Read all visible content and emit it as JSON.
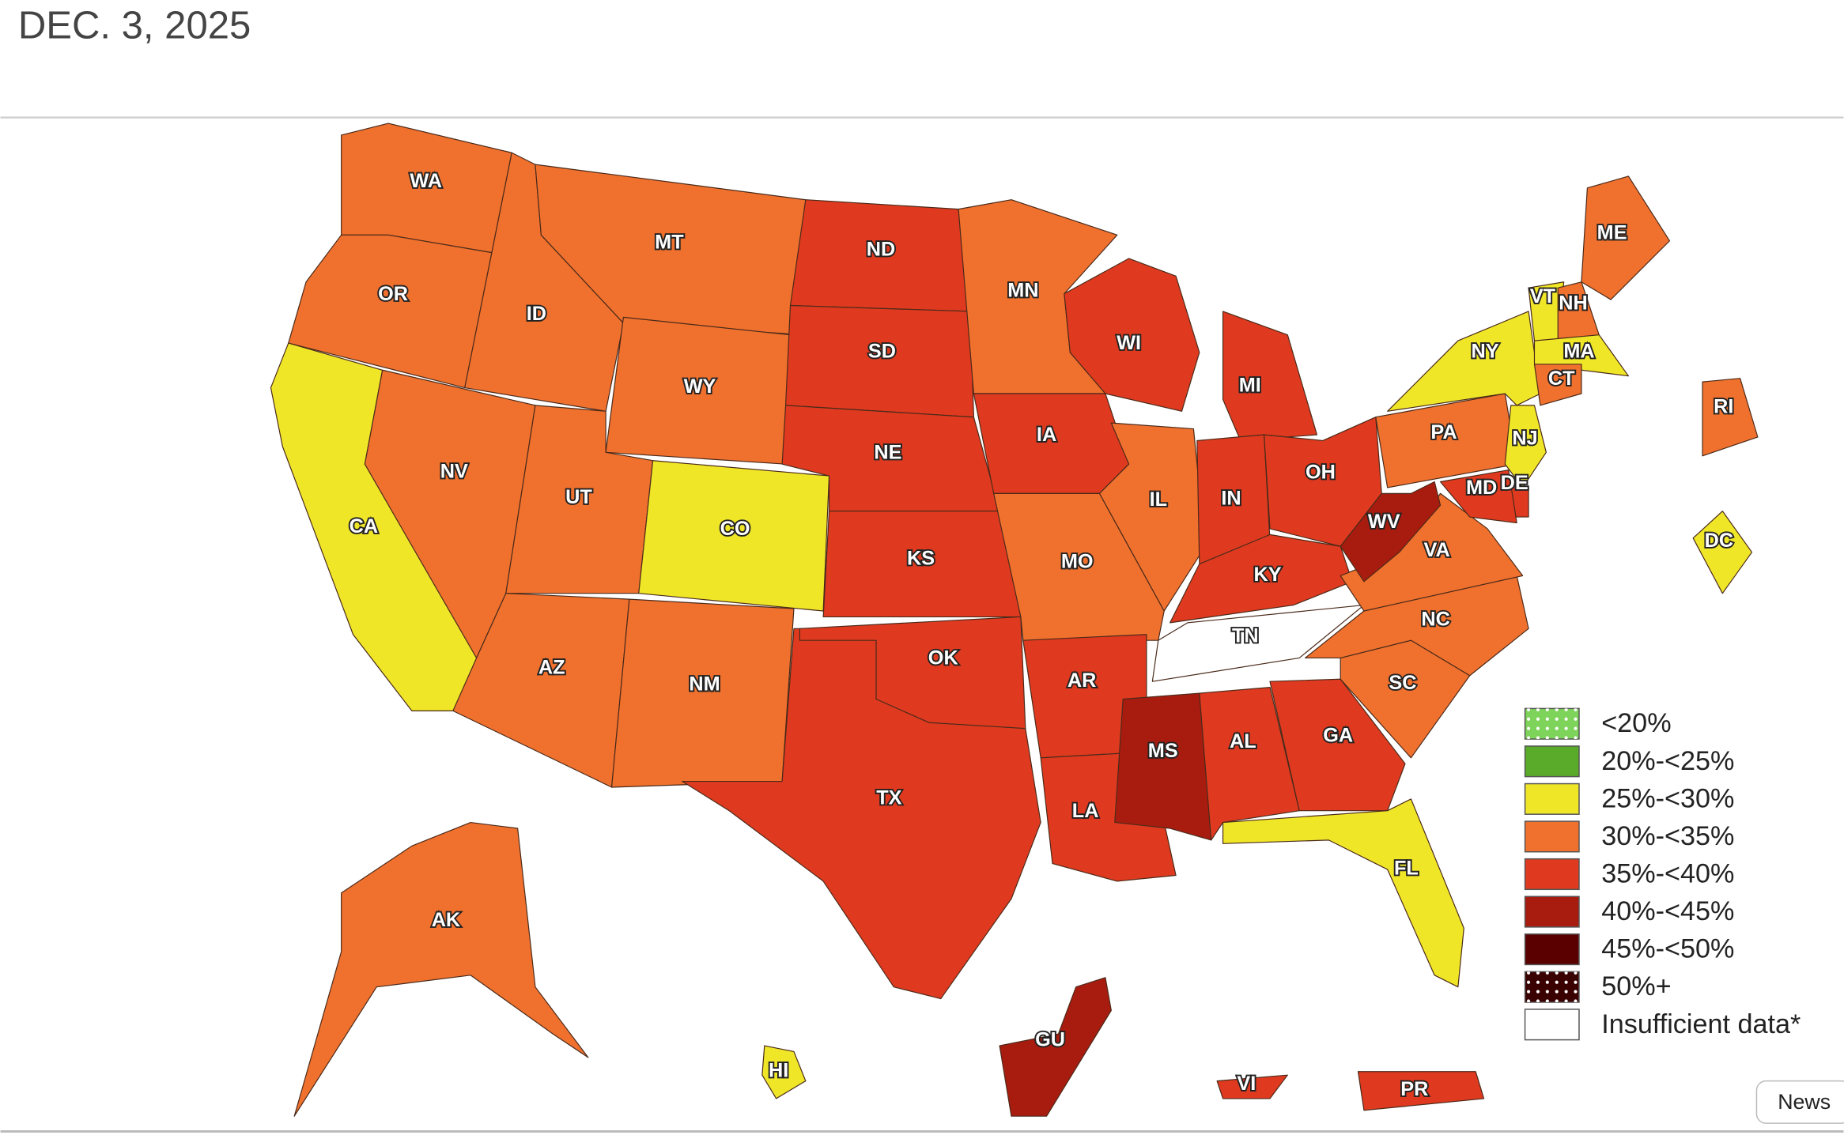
{
  "header": {
    "date": "DEC. 3, 2025"
  },
  "map": {
    "legend": [
      {
        "label": "<20%",
        "color": "#7ed35a",
        "pattern": "dots"
      },
      {
        "label": "20%-<25%",
        "color": "#5aab2a"
      },
      {
        "label": "25%-<30%",
        "color": "#f0e628"
      },
      {
        "label": "30%-<35%",
        "color": "#f0712e"
      },
      {
        "label": "35%-<40%",
        "color": "#df3a1f"
      },
      {
        "label": "40%-<45%",
        "color": "#a81c10"
      },
      {
        "label": "45%-<50%",
        "color": "#5a0000"
      },
      {
        "label": "50%+",
        "color": "#3a0000",
        "pattern": "dots"
      },
      {
        "label": "Insufficient data*",
        "color": "#ffffff"
      }
    ],
    "regions": [
      {
        "label": "WA",
        "category": "30%-<35%"
      },
      {
        "label": "OR",
        "category": "30%-<35%"
      },
      {
        "label": "CA",
        "category": "25%-<30%"
      },
      {
        "label": "NV",
        "category": "30%-<35%"
      },
      {
        "label": "ID",
        "category": "30%-<35%"
      },
      {
        "label": "MT",
        "category": "30%-<35%"
      },
      {
        "label": "WY",
        "category": "30%-<35%"
      },
      {
        "label": "UT",
        "category": "30%-<35%"
      },
      {
        "label": "CO",
        "category": "25%-<30%"
      },
      {
        "label": "AZ",
        "category": "30%-<35%"
      },
      {
        "label": "NM",
        "category": "30%-<35%"
      },
      {
        "label": "ND",
        "category": "35%-<40%"
      },
      {
        "label": "SD",
        "category": "35%-<40%"
      },
      {
        "label": "NE",
        "category": "35%-<40%"
      },
      {
        "label": "KS",
        "category": "35%-<40%"
      },
      {
        "label": "TX",
        "category": "35%-<40%"
      },
      {
        "label": "OK",
        "category": "35%-<40%"
      },
      {
        "label": "MN",
        "category": "30%-<35%"
      },
      {
        "label": "IA",
        "category": "35%-<40%"
      },
      {
        "label": "MO",
        "category": "30%-<35%"
      },
      {
        "label": "AR",
        "category": "35%-<40%"
      },
      {
        "label": "LA",
        "category": "35%-<40%"
      },
      {
        "label": "WI",
        "category": "35%-<40%"
      },
      {
        "label": "IL",
        "category": "30%-<35%"
      },
      {
        "label": "MI",
        "category": "35%-<40%"
      },
      {
        "label": "IN",
        "category": "35%-<40%"
      },
      {
        "label": "OH",
        "category": "35%-<40%"
      },
      {
        "label": "KY",
        "category": "35%-<40%"
      },
      {
        "label": "TN",
        "category": "Insufficient data*"
      },
      {
        "label": "MS",
        "category": "40%-<45%"
      },
      {
        "label": "AL",
        "category": "35%-<40%"
      },
      {
        "label": "GA",
        "category": "35%-<40%"
      },
      {
        "label": "FL",
        "category": "25%-<30%"
      },
      {
        "label": "SC",
        "category": "30%-<35%"
      },
      {
        "label": "NC",
        "category": "30%-<35%"
      },
      {
        "label": "VA",
        "category": "30%-<35%"
      },
      {
        "label": "WV",
        "category": "40%-<45%"
      },
      {
        "label": "PA",
        "category": "30%-<35%"
      },
      {
        "label": "NY",
        "category": "25%-<30%"
      },
      {
        "label": "VT",
        "category": "25%-<30%"
      },
      {
        "label": "NH",
        "category": "30%-<35%"
      },
      {
        "label": "ME",
        "category": "30%-<35%"
      },
      {
        "label": "MA",
        "category": "25%-<30%"
      },
      {
        "label": "CT",
        "category": "30%-<35%"
      },
      {
        "label": "NJ",
        "category": "25%-<30%"
      },
      {
        "label": "DE",
        "category": "35%-<40%"
      },
      {
        "label": "MD",
        "category": "35%-<40%"
      },
      {
        "label": "RI",
        "category": "30%-<35%"
      },
      {
        "label": "DC",
        "category": "25%-<30%"
      },
      {
        "label": "AK",
        "category": "30%-<35%"
      },
      {
        "label": "HI",
        "category": "25%-<30%"
      },
      {
        "label": "GU",
        "category": "40%-<45%"
      },
      {
        "label": "PR",
        "category": "35%-<40%"
      },
      {
        "label": "VI",
        "category": "35%-<40%"
      }
    ]
  },
  "tab": {
    "label": "News"
  }
}
